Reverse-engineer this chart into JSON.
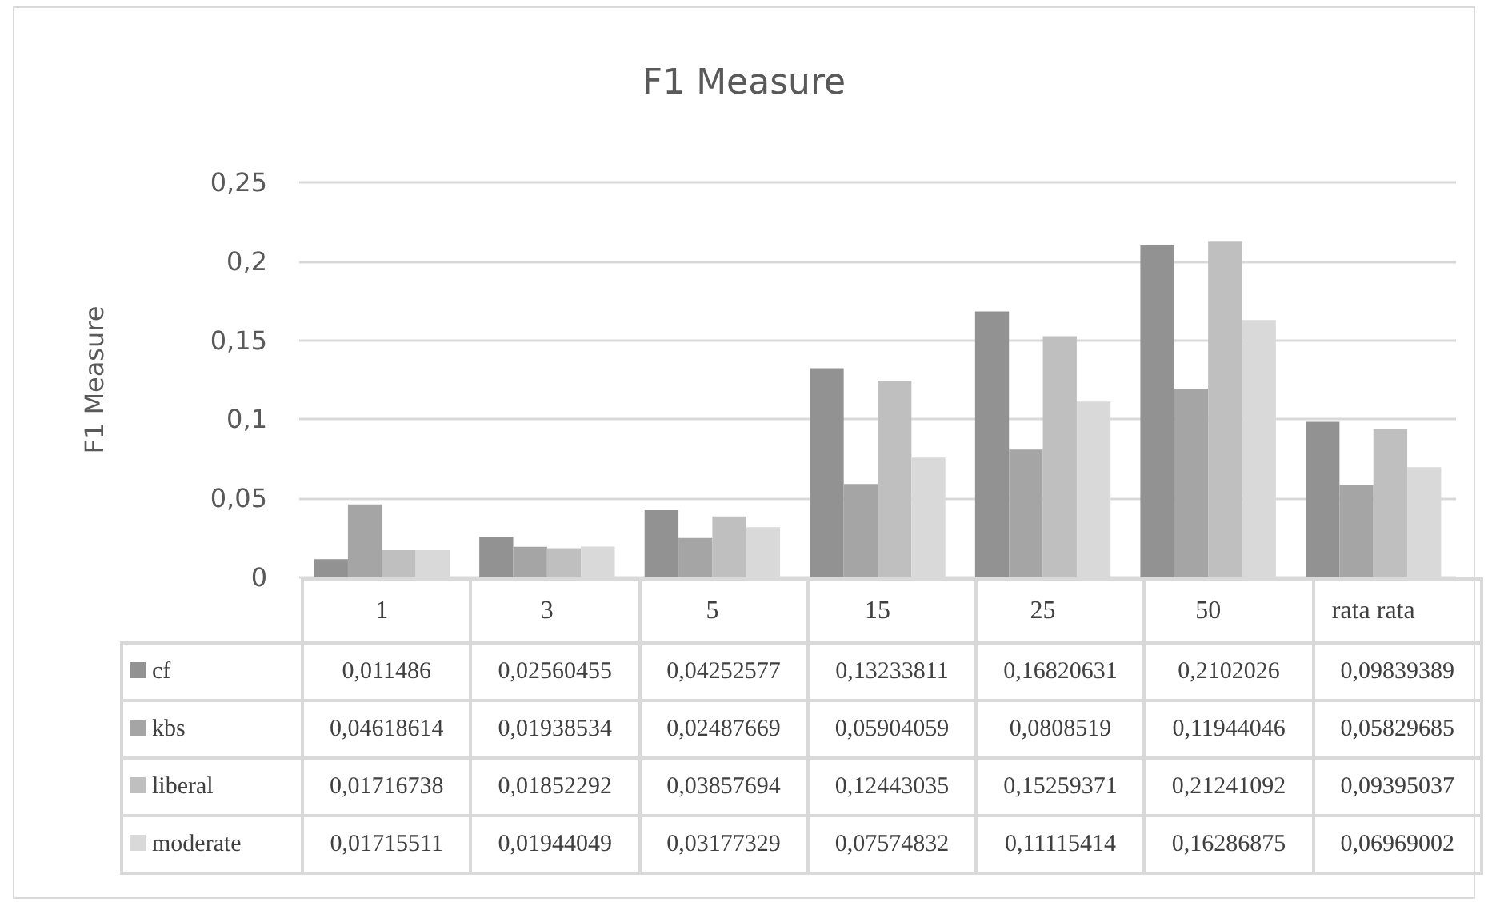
{
  "chart_data": {
    "type": "bar",
    "title": "F1 Measure",
    "ylabel": "F1 Measure",
    "categories": [
      "1",
      "3",
      "5",
      "15",
      "25",
      "50",
      "rata rata"
    ],
    "series": [
      {
        "name": "cf",
        "color": "#929292",
        "values": [
          0.011486,
          0.02560455,
          0.04252577,
          0.13233811,
          0.16820631,
          0.2102026,
          0.09839389
        ],
        "value_labels": [
          "0,011486",
          "0,02560455",
          "0,04252577",
          "0,13233811",
          "0,16820631",
          "0,2102026",
          "0,09839389"
        ]
      },
      {
        "name": "kbs",
        "color": "#a5a5a5",
        "values": [
          0.04618614,
          0.01938534,
          0.02487669,
          0.05904059,
          0.0808519,
          0.11944046,
          0.05829685
        ],
        "value_labels": [
          "0,04618614",
          "0,01938534",
          "0,02487669",
          "0,05904059",
          "0,0808519",
          "0,11944046",
          "0,05829685"
        ]
      },
      {
        "name": "liberal",
        "color": "#bfbfbf",
        "values": [
          0.01716738,
          0.01852292,
          0.03857694,
          0.12443035,
          0.15259371,
          0.21241092,
          0.09395037
        ],
        "value_labels": [
          "0,01716738",
          "0,01852292",
          "0,03857694",
          "0,12443035",
          "0,15259371",
          "0,21241092",
          "0,09395037"
        ]
      },
      {
        "name": "moderate",
        "color": "#d9d9d9",
        "values": [
          0.01715511,
          0.01944049,
          0.03177329,
          0.07574832,
          0.11115414,
          0.16286875,
          0.06969002
        ],
        "value_labels": [
          "0,01715511",
          "0,01944049",
          "0,03177329",
          "0,07574832",
          "0,11115414",
          "0,16286875",
          "0,06969002"
        ]
      }
    ],
    "ylim": [
      0,
      0.25
    ],
    "yticks": [
      {
        "value": 0,
        "label": "0"
      },
      {
        "value": 0.05,
        "label": "0,05"
      },
      {
        "value": 0.1,
        "label": "0,1"
      },
      {
        "value": 0.15,
        "label": "0,15"
      },
      {
        "value": 0.2,
        "label": "0,2"
      },
      {
        "value": 0.25,
        "label": "0,25"
      }
    ],
    "grid": "y",
    "legend": "bottom"
  }
}
